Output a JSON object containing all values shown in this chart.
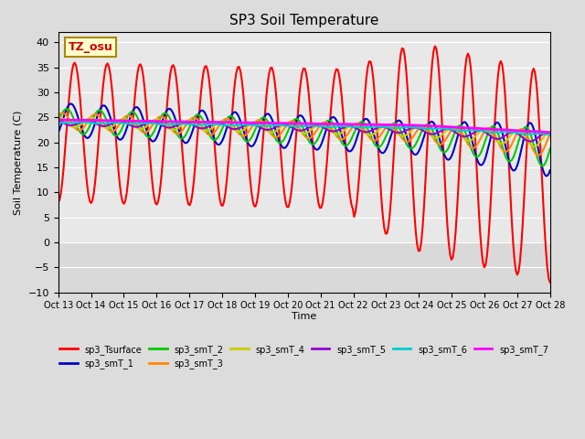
{
  "title": "SP3 Soil Temperature",
  "ylabel": "Soil Temperature (C)",
  "xlabel": "Time",
  "tz_label": "TZ_osu",
  "x_tick_labels": [
    "Oct 13",
    "Oct 14",
    "Oct 15",
    "Oct 16",
    "Oct 17",
    "Oct 18",
    "Oct 19",
    "Oct 20",
    "Oct 21",
    "Oct 22",
    "Oct 23",
    "Oct 24",
    "Oct 25",
    "Oct 26",
    "Oct 27",
    "Oct 28"
  ],
  "ylim": [
    -10,
    42
  ],
  "yticks": [
    -10,
    -5,
    0,
    5,
    10,
    15,
    20,
    25,
    30,
    35,
    40
  ],
  "background_color": "#e8e8e8",
  "plot_bg_color": "#dcdcdc",
  "series": [
    {
      "name": "sp3_Tsurface",
      "color": "#ff0000",
      "lw": 1.5
    },
    {
      "name": "sp3_smT_1",
      "color": "#0000cc",
      "lw": 1.5
    },
    {
      "name": "sp3_smT_2",
      "color": "#00cc00",
      "lw": 1.5
    },
    {
      "name": "sp3_smT_3",
      "color": "#ff8800",
      "lw": 1.5
    },
    {
      "name": "sp3_smT_4",
      "color": "#cccc00",
      "lw": 1.5
    },
    {
      "name": "sp3_smT_5",
      "color": "#9900cc",
      "lw": 1.5
    },
    {
      "name": "sp3_smT_6",
      "color": "#00cccc",
      "lw": 1.5
    },
    {
      "name": "sp3_smT_7",
      "color": "#ff00ff",
      "lw": 2.0
    }
  ]
}
